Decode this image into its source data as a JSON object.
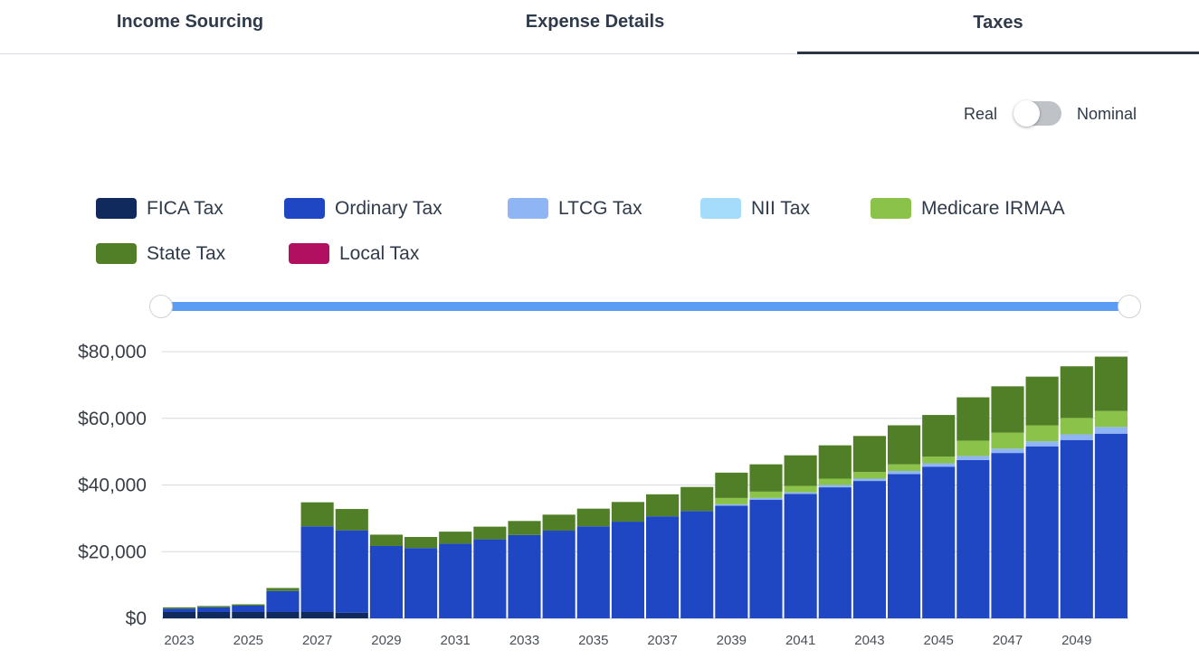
{
  "tabs": [
    {
      "label": "Income Sourcing",
      "active": false
    },
    {
      "label": "Expense Details",
      "active": false
    },
    {
      "label": "Taxes",
      "active": true
    }
  ],
  "toggle": {
    "left_label": "Real",
    "right_label": "Nominal",
    "selected": "Real"
  },
  "legend": [
    {
      "label": "FICA Tax",
      "color": "#102a5e"
    },
    {
      "label": "Ordinary Tax",
      "color": "#1f47c4"
    },
    {
      "label": "LTCG Tax",
      "color": "#8fb5f5"
    },
    {
      "label": "NII Tax",
      "color": "#a5dcfb"
    },
    {
      "label": "Medicare IRMAA",
      "color": "#8bc34a"
    },
    {
      "label": "State Tax",
      "color": "#517f27"
    },
    {
      "label": "Local Tax",
      "color": "#b0105f"
    }
  ],
  "range_slider": {
    "start": 2023,
    "end": 2050
  },
  "chart_data": {
    "type": "bar",
    "stacked": true,
    "title": "",
    "xlabel": "",
    "ylabel": "",
    "ylim": [
      0,
      80000
    ],
    "yticks": [
      "$0",
      "$20,000",
      "$40,000",
      "$60,000",
      "$80,000"
    ],
    "categories": [
      2023,
      2024,
      2025,
      2026,
      2027,
      2028,
      2029,
      2030,
      2031,
      2032,
      2033,
      2034,
      2035,
      2036,
      2037,
      2038,
      2039,
      2040,
      2041,
      2042,
      2043,
      2044,
      2045,
      2046,
      2047,
      2048,
      2049,
      2050
    ],
    "xtick_labels": [
      "2023",
      "2025",
      "2027",
      "2029",
      "2031",
      "2033",
      "2035",
      "2037",
      "2039",
      "2041",
      "2043",
      "2045",
      "2047",
      "2049"
    ],
    "series": [
      {
        "name": "FICA Tax",
        "values": [
          1900,
          1900,
          1900,
          1900,
          1900,
          1700,
          0,
          0,
          0,
          0,
          0,
          0,
          0,
          0,
          0,
          0,
          0,
          0,
          0,
          0,
          0,
          0,
          0,
          0,
          0,
          0,
          0,
          0
        ]
      },
      {
        "name": "Ordinary Tax",
        "values": [
          1000,
          1400,
          1900,
          6300,
          25700,
          24700,
          21700,
          21100,
          22400,
          23700,
          25000,
          26300,
          27600,
          29000,
          30600,
          32200,
          33800,
          35600,
          37300,
          39300,
          41200,
          43300,
          45500,
          47500,
          49600,
          51600,
          53500,
          55400
        ]
      },
      {
        "name": "LTCG Tax",
        "values": [
          0,
          0,
          0,
          0,
          0,
          0,
          0,
          0,
          0,
          0,
          0,
          0,
          0,
          0,
          0,
          0,
          400,
          500,
          500,
          700,
          700,
          900,
          1000,
          1200,
          1300,
          1500,
          1700,
          2000
        ]
      },
      {
        "name": "NII Tax",
        "values": [
          0,
          0,
          0,
          0,
          0,
          0,
          0,
          0,
          0,
          0,
          0,
          0,
          0,
          0,
          0,
          0,
          0,
          0,
          0,
          0,
          0,
          0,
          0,
          0,
          0,
          0,
          0,
          0
        ]
      },
      {
        "name": "Medicare IRMAA",
        "values": [
          0,
          0,
          0,
          0,
          0,
          0,
          0,
          0,
          0,
          0,
          0,
          0,
          0,
          0,
          0,
          0,
          1900,
          1900,
          1900,
          1900,
          2000,
          2000,
          2000,
          4600,
          4800,
          4800,
          4900,
          4800
        ]
      },
      {
        "name": "State Tax",
        "values": [
          400,
          400,
          400,
          900,
          7200,
          6400,
          3400,
          3300,
          3600,
          3800,
          4200,
          4800,
          5300,
          5900,
          6600,
          7200,
          7600,
          8200,
          9200,
          10000,
          10800,
          11700,
          12500,
          13000,
          13900,
          14600,
          15500,
          16300
        ]
      },
      {
        "name": "Local Tax",
        "values": [
          0,
          0,
          0,
          0,
          0,
          0,
          0,
          0,
          0,
          0,
          0,
          0,
          0,
          0,
          0,
          0,
          0,
          0,
          0,
          0,
          0,
          0,
          0,
          0,
          0,
          0,
          0,
          0
        ]
      }
    ]
  }
}
